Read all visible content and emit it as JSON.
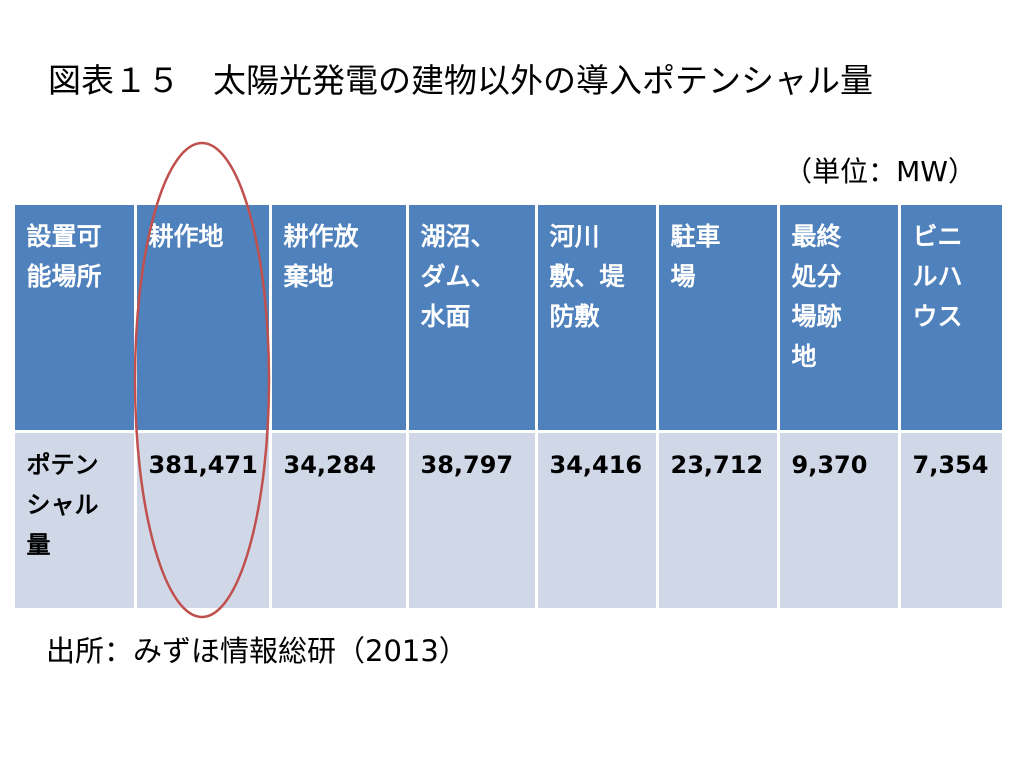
{
  "title": "図表１５　太陽光発電の建物以外の導入ポテンシャル量",
  "unit": "（単位：MW）",
  "table": {
    "header": [
      [
        "設置可",
        "能場所"
      ],
      [
        "耕作地"
      ],
      [
        "耕作放",
        "棄地"
      ],
      [
        "湖沼、",
        "ダム、",
        "水面"
      ],
      [
        "河川",
        "敷、堤",
        "防敷"
      ],
      [
        "駐車",
        "場"
      ],
      [
        "最終",
        "処分",
        "場跡",
        "地"
      ],
      [
        "ビニ",
        "ルハ",
        "ウス"
      ]
    ],
    "rows": [
      [
        [
          "ポテン",
          "シャル",
          "量"
        ],
        [
          "381,471"
        ],
        [
          "34,284"
        ],
        [
          "38,797"
        ],
        [
          "34,416"
        ],
        [
          "23,712"
        ],
        [
          "9,370"
        ],
        [
          "7,354"
        ]
      ]
    ]
  },
  "source": "出所：みずほ情報総研（2013）"
}
